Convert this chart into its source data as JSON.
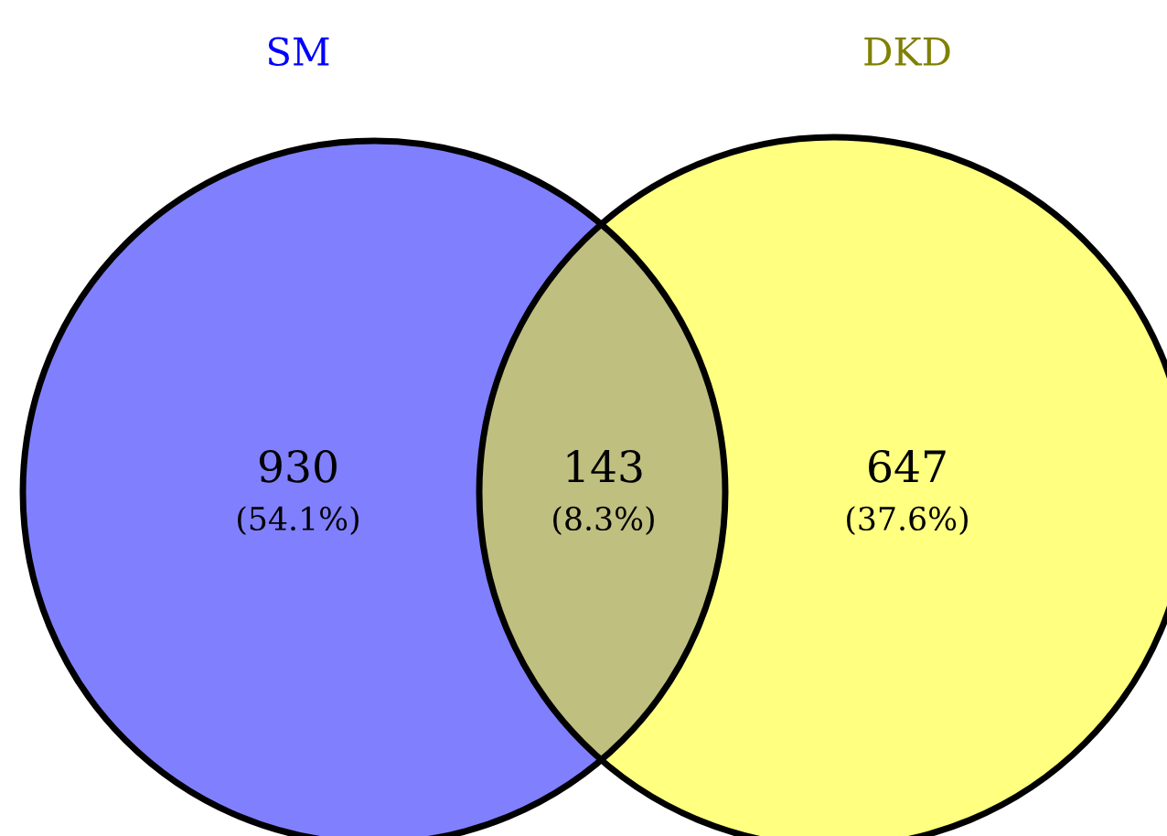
{
  "chart_data": {
    "type": "other",
    "categories": [
      "SM",
      null,
      "DKD"
    ],
    "values": [
      930,
      143,
      647
    ],
    "annotations": [
      "(54.1%)",
      "(8.3%)",
      "(37.6%)"
    ],
    "colors": [
      "#8080ff",
      "#bfbf80",
      "#ffff80"
    ],
    "data_labels": true
  }
}
